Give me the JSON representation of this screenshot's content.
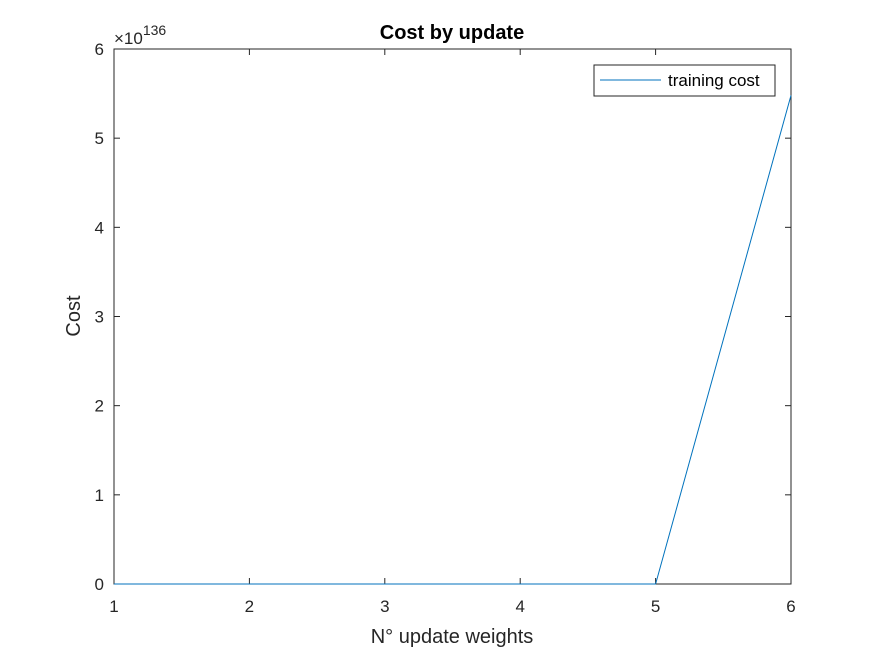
{
  "chart_data": {
    "type": "line",
    "title": "Cost by update",
    "xlabel": "N° update weights",
    "ylabel": "Cost",
    "xlim": [
      1,
      6
    ],
    "ylim": [
      0,
      6
    ],
    "x_ticks": [
      "1",
      "2",
      "3",
      "4",
      "5",
      "6"
    ],
    "y_ticks": [
      "0",
      "1",
      "2",
      "3",
      "4",
      "5",
      "6"
    ],
    "y_exponent_base": "×10",
    "y_exponent_power": "136",
    "grid": false,
    "legend_position": "top-right",
    "series": [
      {
        "name": "training cost",
        "color": "#0072BD",
        "x": [
          1,
          2,
          3,
          4,
          5,
          6
        ],
        "y": [
          0,
          0,
          0,
          0,
          0,
          5.48
        ]
      }
    ]
  }
}
